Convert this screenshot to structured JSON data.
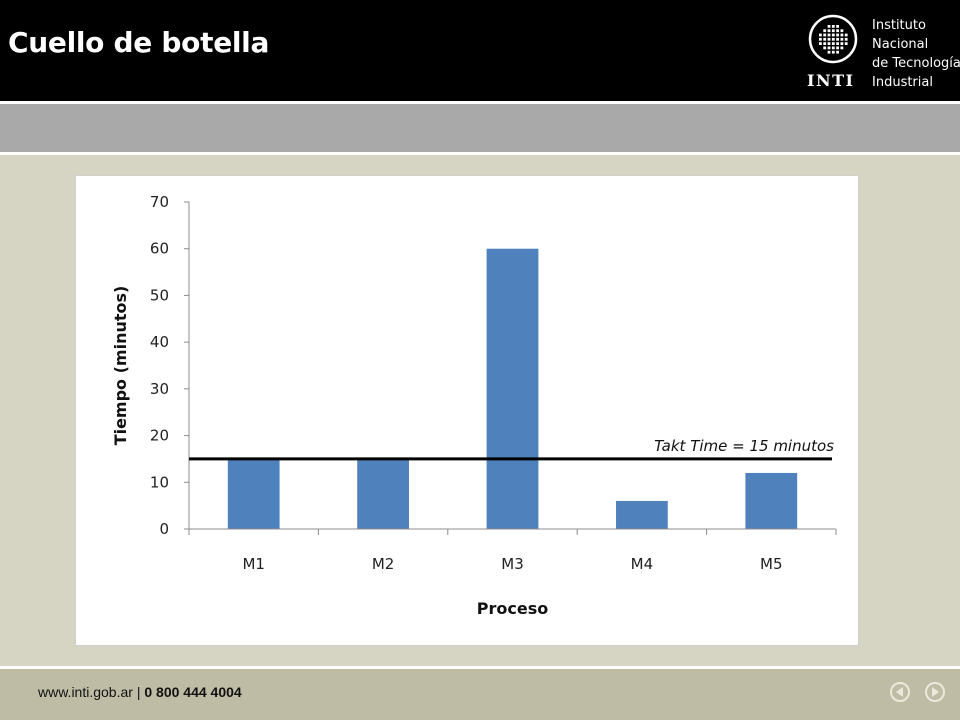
{
  "header": {
    "title": "Cuello de botella"
  },
  "logo": {
    "lines": [
      "Instituto",
      "Nacional",
      "de Tecnología",
      "Industrial"
    ],
    "mark_text": "INTI"
  },
  "footer": {
    "url": "www.inti.gob.ar",
    "separator": " | ",
    "phone": "0 800 444 4004",
    "nav": [
      "previous-icon",
      "next-icon"
    ]
  },
  "chart_data": {
    "type": "bar",
    "categories": [
      "M1",
      "M2",
      "M3",
      "M4",
      "M5"
    ],
    "values": [
      15,
      15,
      60,
      6,
      12
    ],
    "xlabel": "Proceso",
    "ylabel": "Tiempo (minutos)",
    "ylim": [
      0,
      70
    ],
    "yticks": [
      "0",
      "10",
      "20",
      "30",
      "40",
      "50",
      "60",
      "70"
    ],
    "grid": false,
    "bar_color": "#4f81bd",
    "reference_line": {
      "value": 15,
      "label": "Takt Time = 15 minutos",
      "color": "#000000"
    }
  }
}
